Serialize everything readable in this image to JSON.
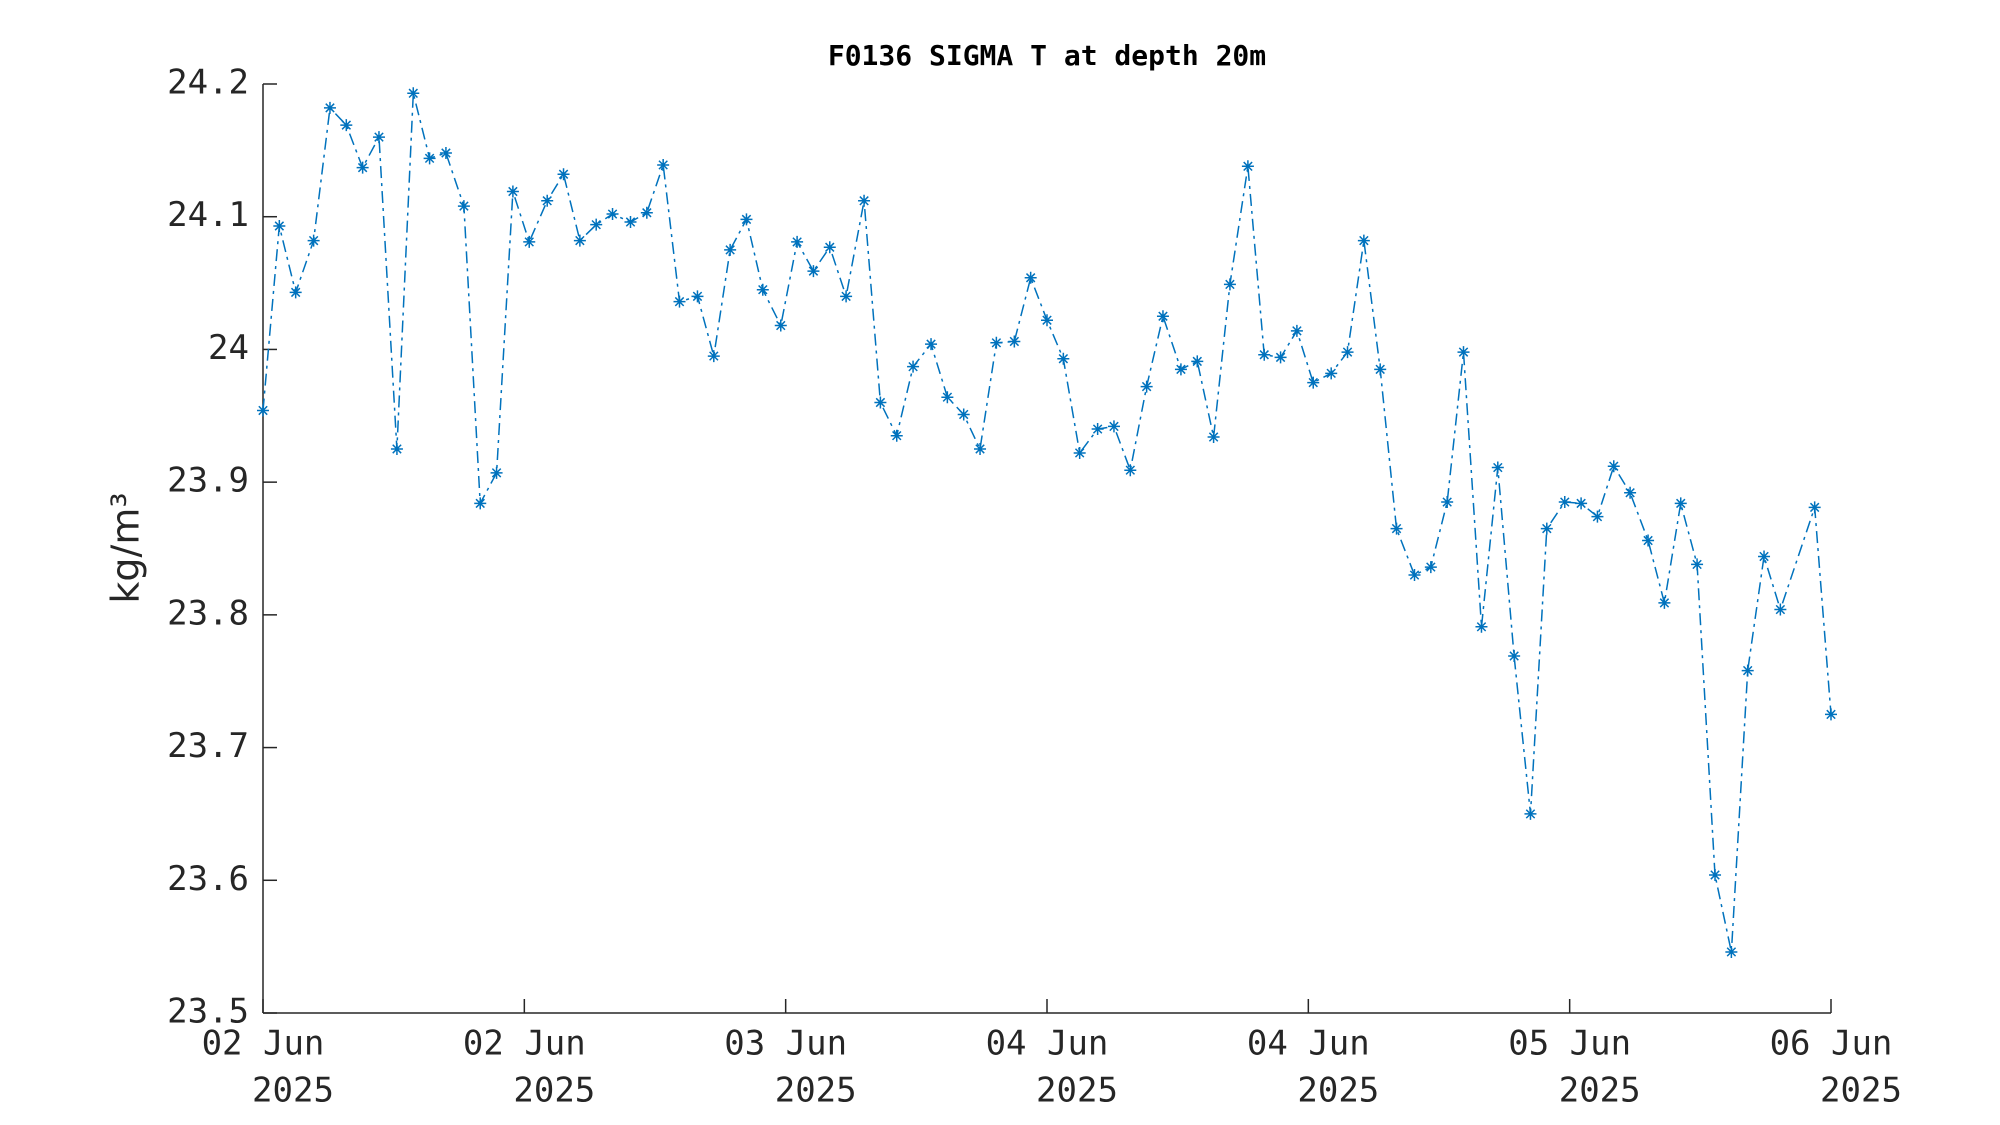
{
  "chart_data": {
    "type": "line",
    "title": "F0136 SIGMA T at depth 20m",
    "ylabel": "kg/m³",
    "x": [
      0,
      1.0,
      2.0,
      3.1,
      4.1,
      5.1,
      6.1,
      7.1,
      8.2,
      9.2,
      10.2,
      11.2,
      12.3,
      13.3,
      14.3,
      15.3,
      16.3,
      17.4,
      18.4,
      19.4,
      20.4,
      21.4,
      22.5,
      23.5,
      24.5,
      25.5,
      26.6,
      27.6,
      28.6,
      29.6,
      30.6,
      31.7,
      32.7,
      33.7,
      34.7,
      35.7,
      36.8,
      37.8,
      38.8,
      39.8,
      40.9,
      41.9,
      42.9,
      43.9,
      44.9,
      46.0,
      47.0,
      48.0,
      49.0,
      50.0,
      51.1,
      52.1,
      53.1,
      54.1,
      55.1,
      56.2,
      57.2,
      58.2,
      59.2,
      60.3,
      61.3,
      62.3,
      63.3,
      64.3,
      65.4,
      66.4,
      67.4,
      68.4,
      69.4,
      70.5,
      71.5,
      72.5,
      73.5,
      74.6,
      75.6,
      76.6,
      77.6,
      78.6,
      79.7,
      80.7,
      81.7,
      82.7,
      83.7,
      84.8,
      85.8,
      86.8,
      87.8,
      88.9,
      89.9,
      90.9,
      91.9,
      92.9,
      95.0,
      96.0
    ],
    "series": [
      {
        "color": "#0072bd",
        "values": [
          23.954,
          24.093,
          24.043,
          24.082,
          24.182,
          24.169,
          24.137,
          24.16,
          23.925,
          24.193,
          24.144,
          24.148,
          24.108,
          23.884,
          23.907,
          24.119,
          24.081,
          24.112,
          24.132,
          24.082,
          24.094,
          24.102,
          24.096,
          24.103,
          24.139,
          24.036,
          24.04,
          23.995,
          24.075,
          24.098,
          24.045,
          24.018,
          24.081,
          24.059,
          24.077,
          24.04,
          24.112,
          23.96,
          23.935,
          23.987,
          24.004,
          23.964,
          23.951,
          23.925,
          24.005,
          24.006,
          24.054,
          24.022,
          23.993,
          23.922,
          23.94,
          23.942,
          23.909,
          23.972,
          24.025,
          23.985,
          23.991,
          23.934,
          24.049,
          24.138,
          23.996,
          23.994,
          24.014,
          23.975,
          23.982,
          23.998,
          24.082,
          23.985,
          23.865,
          23.83,
          23.836,
          23.885,
          23.998,
          23.791,
          23.911,
          23.769,
          23.65,
          23.865,
          23.885,
          23.884,
          23.874,
          23.912,
          23.892,
          23.856,
          23.809,
          23.884,
          23.838,
          23.604,
          23.546,
          23.758,
          23.844,
          23.804,
          23.881,
          23.725
        ]
      }
    ],
    "xlim": [
      0,
      96
    ],
    "xticks": [
      {
        "value": 0,
        "label": "02 Jun",
        "sublabel": "2025"
      },
      {
        "value": 16,
        "label": "02 Jun",
        "sublabel": "2025"
      },
      {
        "value": 32,
        "label": "03 Jun",
        "sublabel": "2025"
      },
      {
        "value": 48,
        "label": "04 Jun",
        "sublabel": "2025"
      },
      {
        "value": 64,
        "label": "04 Jun",
        "sublabel": "2025"
      },
      {
        "value": 80,
        "label": "05 Jun",
        "sublabel": "2025"
      },
      {
        "value": 96,
        "label": "06 Jun",
        "sublabel": "2025"
      }
    ],
    "ylim": [
      23.5,
      24.2
    ],
    "yticks": [
      23.5,
      23.6,
      23.7,
      23.8,
      23.9,
      24,
      24.1,
      24.2
    ]
  }
}
